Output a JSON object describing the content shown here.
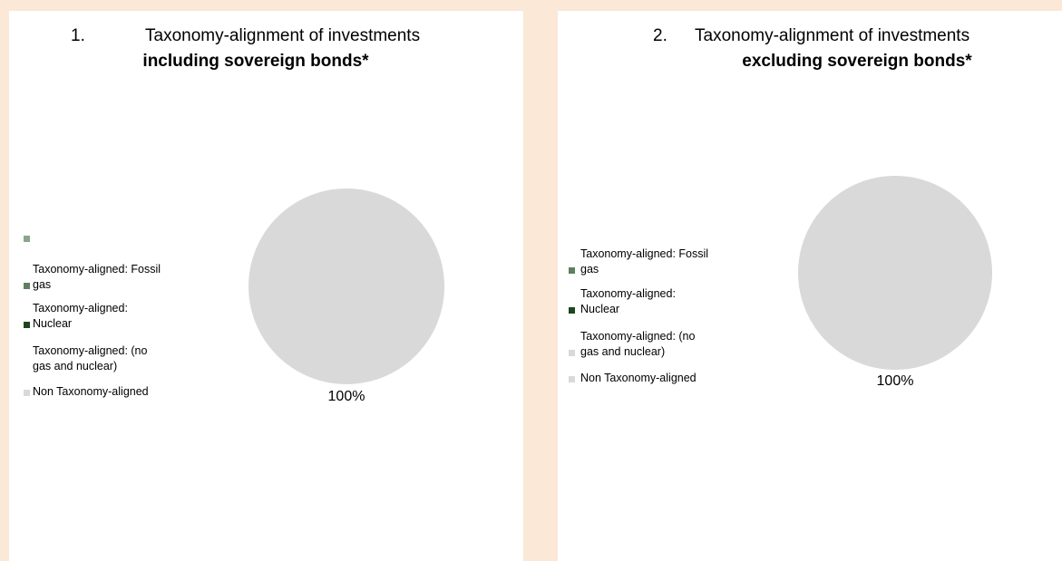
{
  "chart_data": [
    {
      "type": "pie",
      "title_number": "1.",
      "title": "Taxonomy-alignment of investments",
      "subtitle": "including sovereign bonds*",
      "categories": [
        null,
        "Taxonomy-aligned: Fossil gas",
        "Taxonomy-aligned: Nuclear",
        "Taxonomy-aligned: (no gas and nuclear)",
        "Non Taxonomy-aligned"
      ],
      "values": [
        0,
        0,
        0,
        0,
        100
      ],
      "value_labels": [
        null,
        null,
        null,
        null,
        "100%"
      ],
      "colors": [
        "#8aa68a",
        "#5f7f5f",
        "#1e4620",
        "#ffffff",
        "#d9d9d9"
      ],
      "legend": "left"
    },
    {
      "type": "pie",
      "title_number": "2.",
      "title": "Taxonomy-alignment of investments",
      "subtitle": "excluding sovereign bonds*",
      "categories": [
        "Taxonomy-aligned: Fossil gas",
        "Taxonomy-aligned: Nuclear",
        "Taxonomy-aligned: (no gas and nuclear)",
        "Non Taxonomy-aligned"
      ],
      "values": [
        0,
        0,
        0,
        100
      ],
      "value_labels": [
        null,
        null,
        null,
        "100%"
      ],
      "colors": [
        "#5f7f5f",
        "#1e4620",
        "#d9d9d9",
        "#d9d9d9"
      ],
      "legend": "left"
    }
  ]
}
